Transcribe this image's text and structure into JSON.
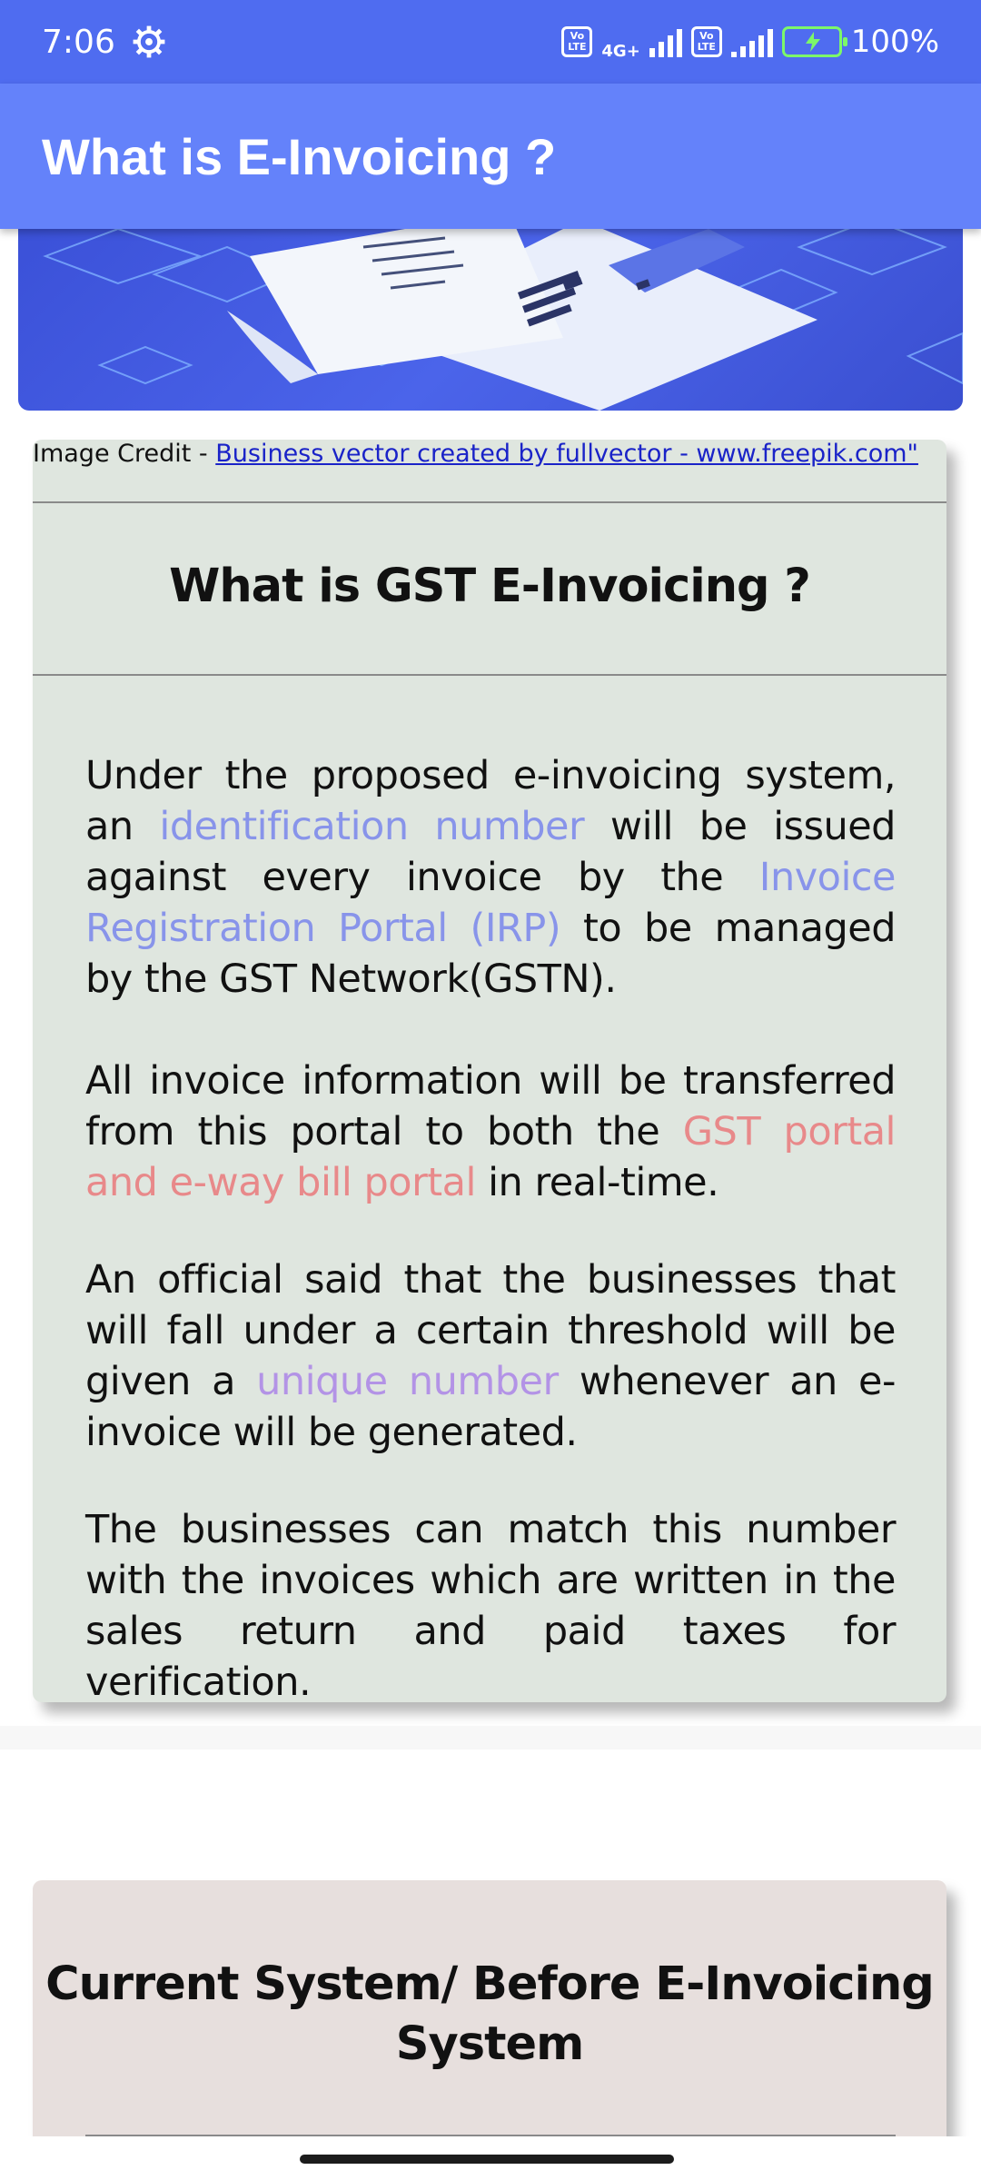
{
  "status_bar": {
    "time": "7:06",
    "network_type": "4G+",
    "lte_badge": "Vo LTE",
    "battery": "100%"
  },
  "app_bar": {
    "title": "What is E-Invoicing ?"
  },
  "image_credit": {
    "prefix": "Image Credit - ",
    "link_text": "Business vector created by fullvector - www.freepik.com\""
  },
  "card_gst": {
    "heading": "What is GST E-Invoicing ?",
    "paragraphs": [
      {
        "p1": "Under the proposed e-invoicing system, an ",
        "h1": "identification number",
        "p2": " will be issued against every invoice by the ",
        "h2": "Invoice Registration Portal (IRP)",
        "p3": " to be managed by the GST Network(GSTN)."
      },
      {
        "p1": "All invoice information will be transferred from this portal to both the ",
        "h1": "GST portal and e-way bill portal",
        "p2": " in real-time."
      },
      {
        "p1": "An official said that the businesses that will fall under a certain threshold will be given a ",
        "h1": "unique number",
        "p2": " whenever an e-invoice will be generated."
      },
      {
        "p1": "The businesses can match this number with the invoices which are written in the sales return and paid taxes for verification."
      }
    ]
  },
  "card_current": {
    "heading": "Current System/ Before E-Invoicing System"
  },
  "colors": {
    "status_bar": "#4f6cf0",
    "app_bar": "#6482fa",
    "card_gst_bg": "#dfe6df",
    "card_current_bg": "#e7dfdd",
    "highlight_blue": "#8894ea",
    "highlight_red": "#e8898a",
    "highlight_purple": "#b393e6",
    "link": "#1a23c8"
  },
  "icons": {
    "status_settings": "gear-icon",
    "signal": "signal-icon",
    "battery": "battery-charging-icon"
  }
}
